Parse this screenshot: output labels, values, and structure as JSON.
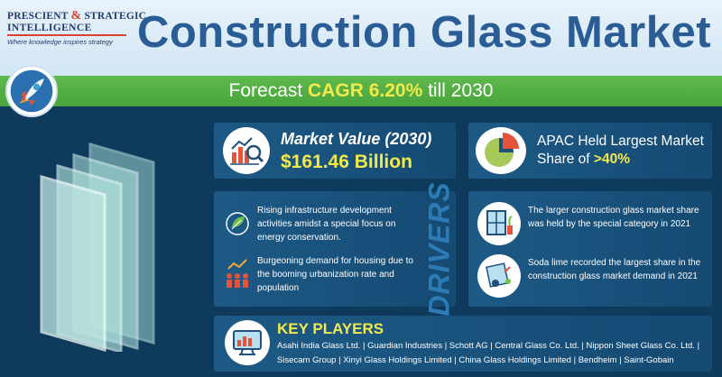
{
  "header": {
    "logo_line1a": "PRESCIENT",
    "logo_amp": "&",
    "logo_line1b": "STRATEGIC",
    "logo_line2": "INTELLIGENCE",
    "logo_tagline": "Where knowledge inspires strategy",
    "title": "Construction Glass Market"
  },
  "forecast": {
    "prefix": "Forecast ",
    "highlight": "CAGR 6.20%",
    "suffix": " till 2030"
  },
  "market_value": {
    "title": "Market Value (2030)",
    "value": "$161.46 Billion"
  },
  "apac": {
    "line1": "APAC Held Largest Market",
    "line2_prefix": "Share of ",
    "line2_highlight": ">40%"
  },
  "drivers": {
    "label": "DRIVERS",
    "item1": "Rising infrastructure development activities amidst a special focus on energy conservation.",
    "item2": "Burgeoning demand for housing due to the booming urbanization rate and population"
  },
  "insights": {
    "item1": "The larger construction glass market share was held by the special category in 2021",
    "item2": "Soda lime recorded the largest share in the construction glass market demand in 2021"
  },
  "key_players": {
    "title": "KEY PLAYERS",
    "line1": "Asahi India Glass Ltd. | Guardian Industries | Schott AG | Central Glass Co. Ltd. | Nippon Sheet Glass Co. Ltd. |",
    "line2": "Sisecam Group | Xinyi Glass Holdings Limited | China Glass Holdings Limited | Bendheim | Saint-Gobain"
  },
  "colors": {
    "background": "#0e3a5c",
    "card": "#1d5a86",
    "accent_yellow": "#f2e94b",
    "forecast_green": "#48a43b",
    "title_blue": "#2a5d96"
  }
}
